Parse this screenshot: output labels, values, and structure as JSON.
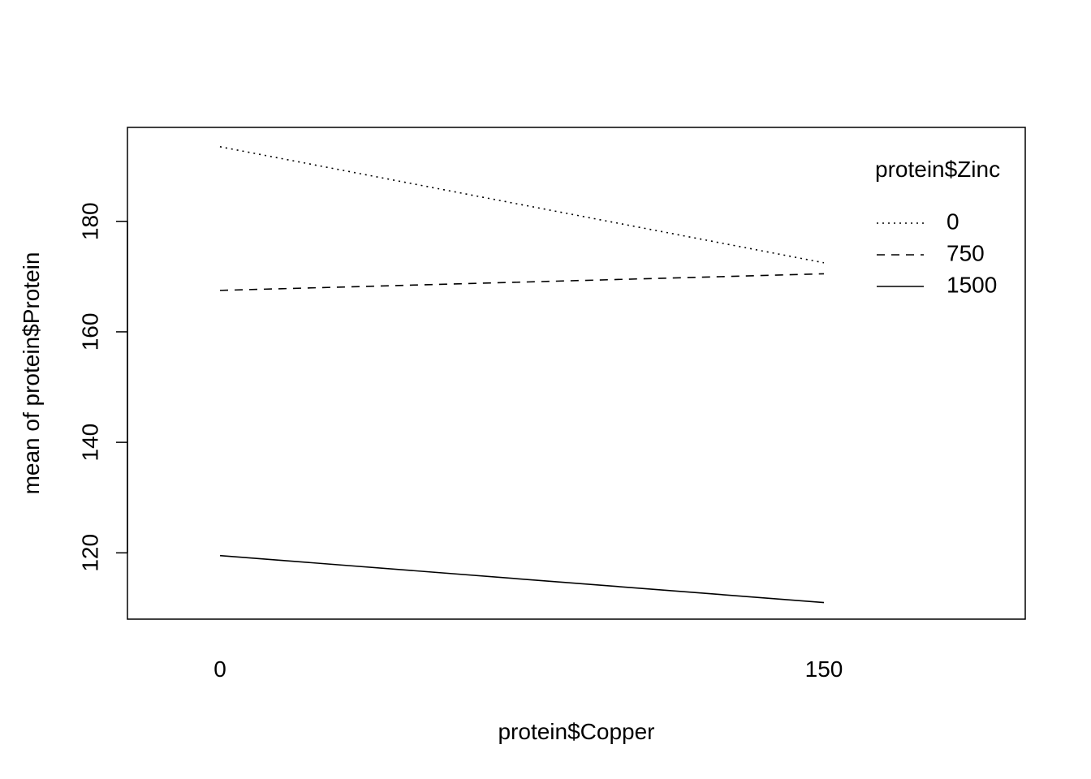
{
  "chart_data": {
    "type": "line",
    "xlabel": "protein$Copper",
    "ylabel": "mean of  protein$Protein",
    "categories": [
      "0",
      "150"
    ],
    "y_ticks": [
      120,
      140,
      160,
      180
    ],
    "ylim": [
      108,
      197
    ],
    "legend": {
      "title": "protein$Zinc",
      "position": "top-right"
    },
    "series": [
      {
        "name": "0",
        "values": [
          193.5,
          172.5
        ],
        "line_style": "dotted"
      },
      {
        "name": "750",
        "values": [
          167.5,
          170.5
        ],
        "line_style": "dashed"
      },
      {
        "name": "1500",
        "values": [
          119.5,
          111.0
        ],
        "line_style": "solid"
      }
    ],
    "colors": {
      "line": "#000000",
      "background": "#ffffff"
    }
  }
}
